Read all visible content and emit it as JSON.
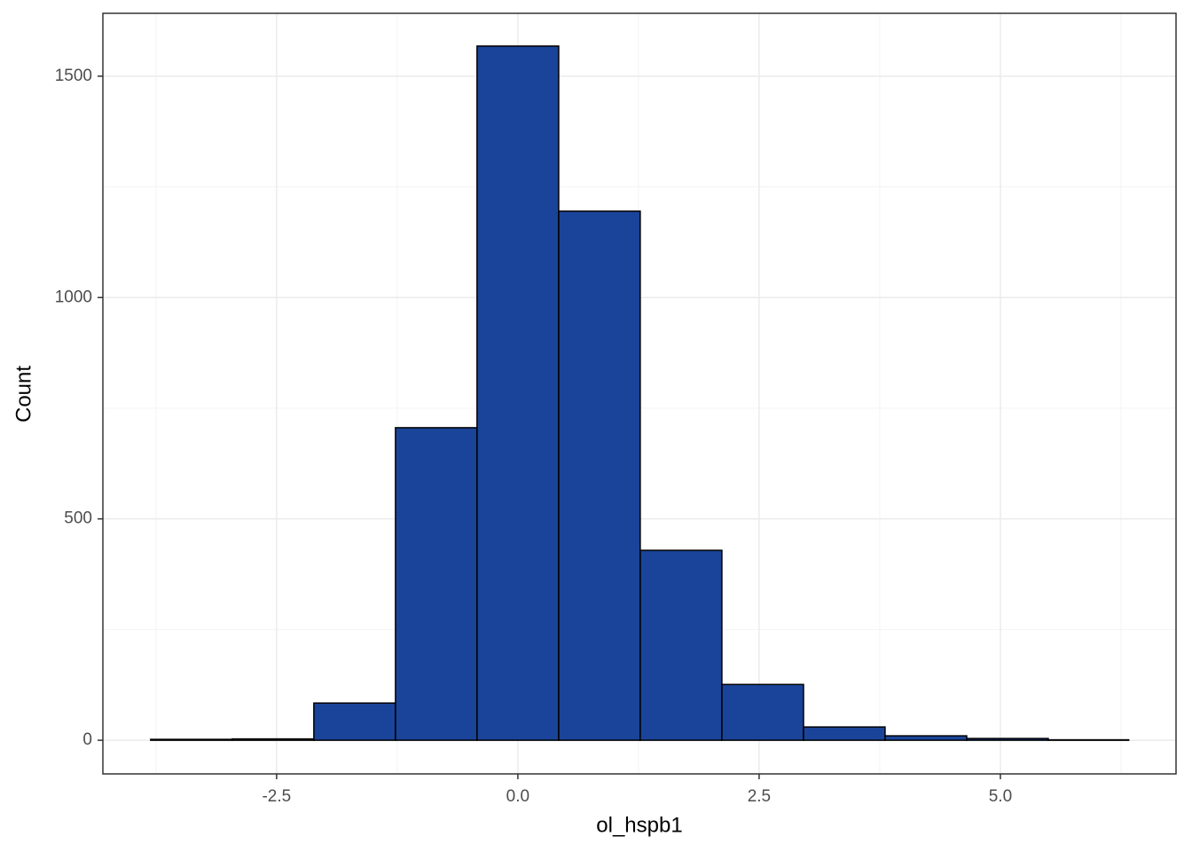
{
  "chart_data": {
    "type": "histogram",
    "x_label": "ol_hspb1",
    "y_label": "Count",
    "bins": [
      -3.805,
      -2.96,
      -2.114,
      -1.268,
      -0.423,
      0.423,
      1.268,
      2.114,
      2.96,
      3.805,
      4.651,
      5.496,
      6.33
    ],
    "values": [
      2,
      3,
      84,
      706,
      1568,
      1195,
      429,
      126,
      30,
      10,
      4,
      1
    ],
    "color": "#1a4499",
    "edge_color": "#000000",
    "xlim": [
      -4.3,
      6.82
    ],
    "ylim": [
      -76,
      1642
    ],
    "xticks": [
      -2.5,
      {
        "value": 0,
        "label": "0.0"
      },
      2.5,
      {
        "value": 5,
        "label": "5.0"
      }
    ],
    "yticks": [
      0,
      500,
      1000,
      1500
    ],
    "xminor": [
      -3.75,
      -1.25,
      1.25,
      3.75,
      6.25
    ],
    "yminor": [
      250,
      750,
      1250
    ],
    "grid": true
  }
}
